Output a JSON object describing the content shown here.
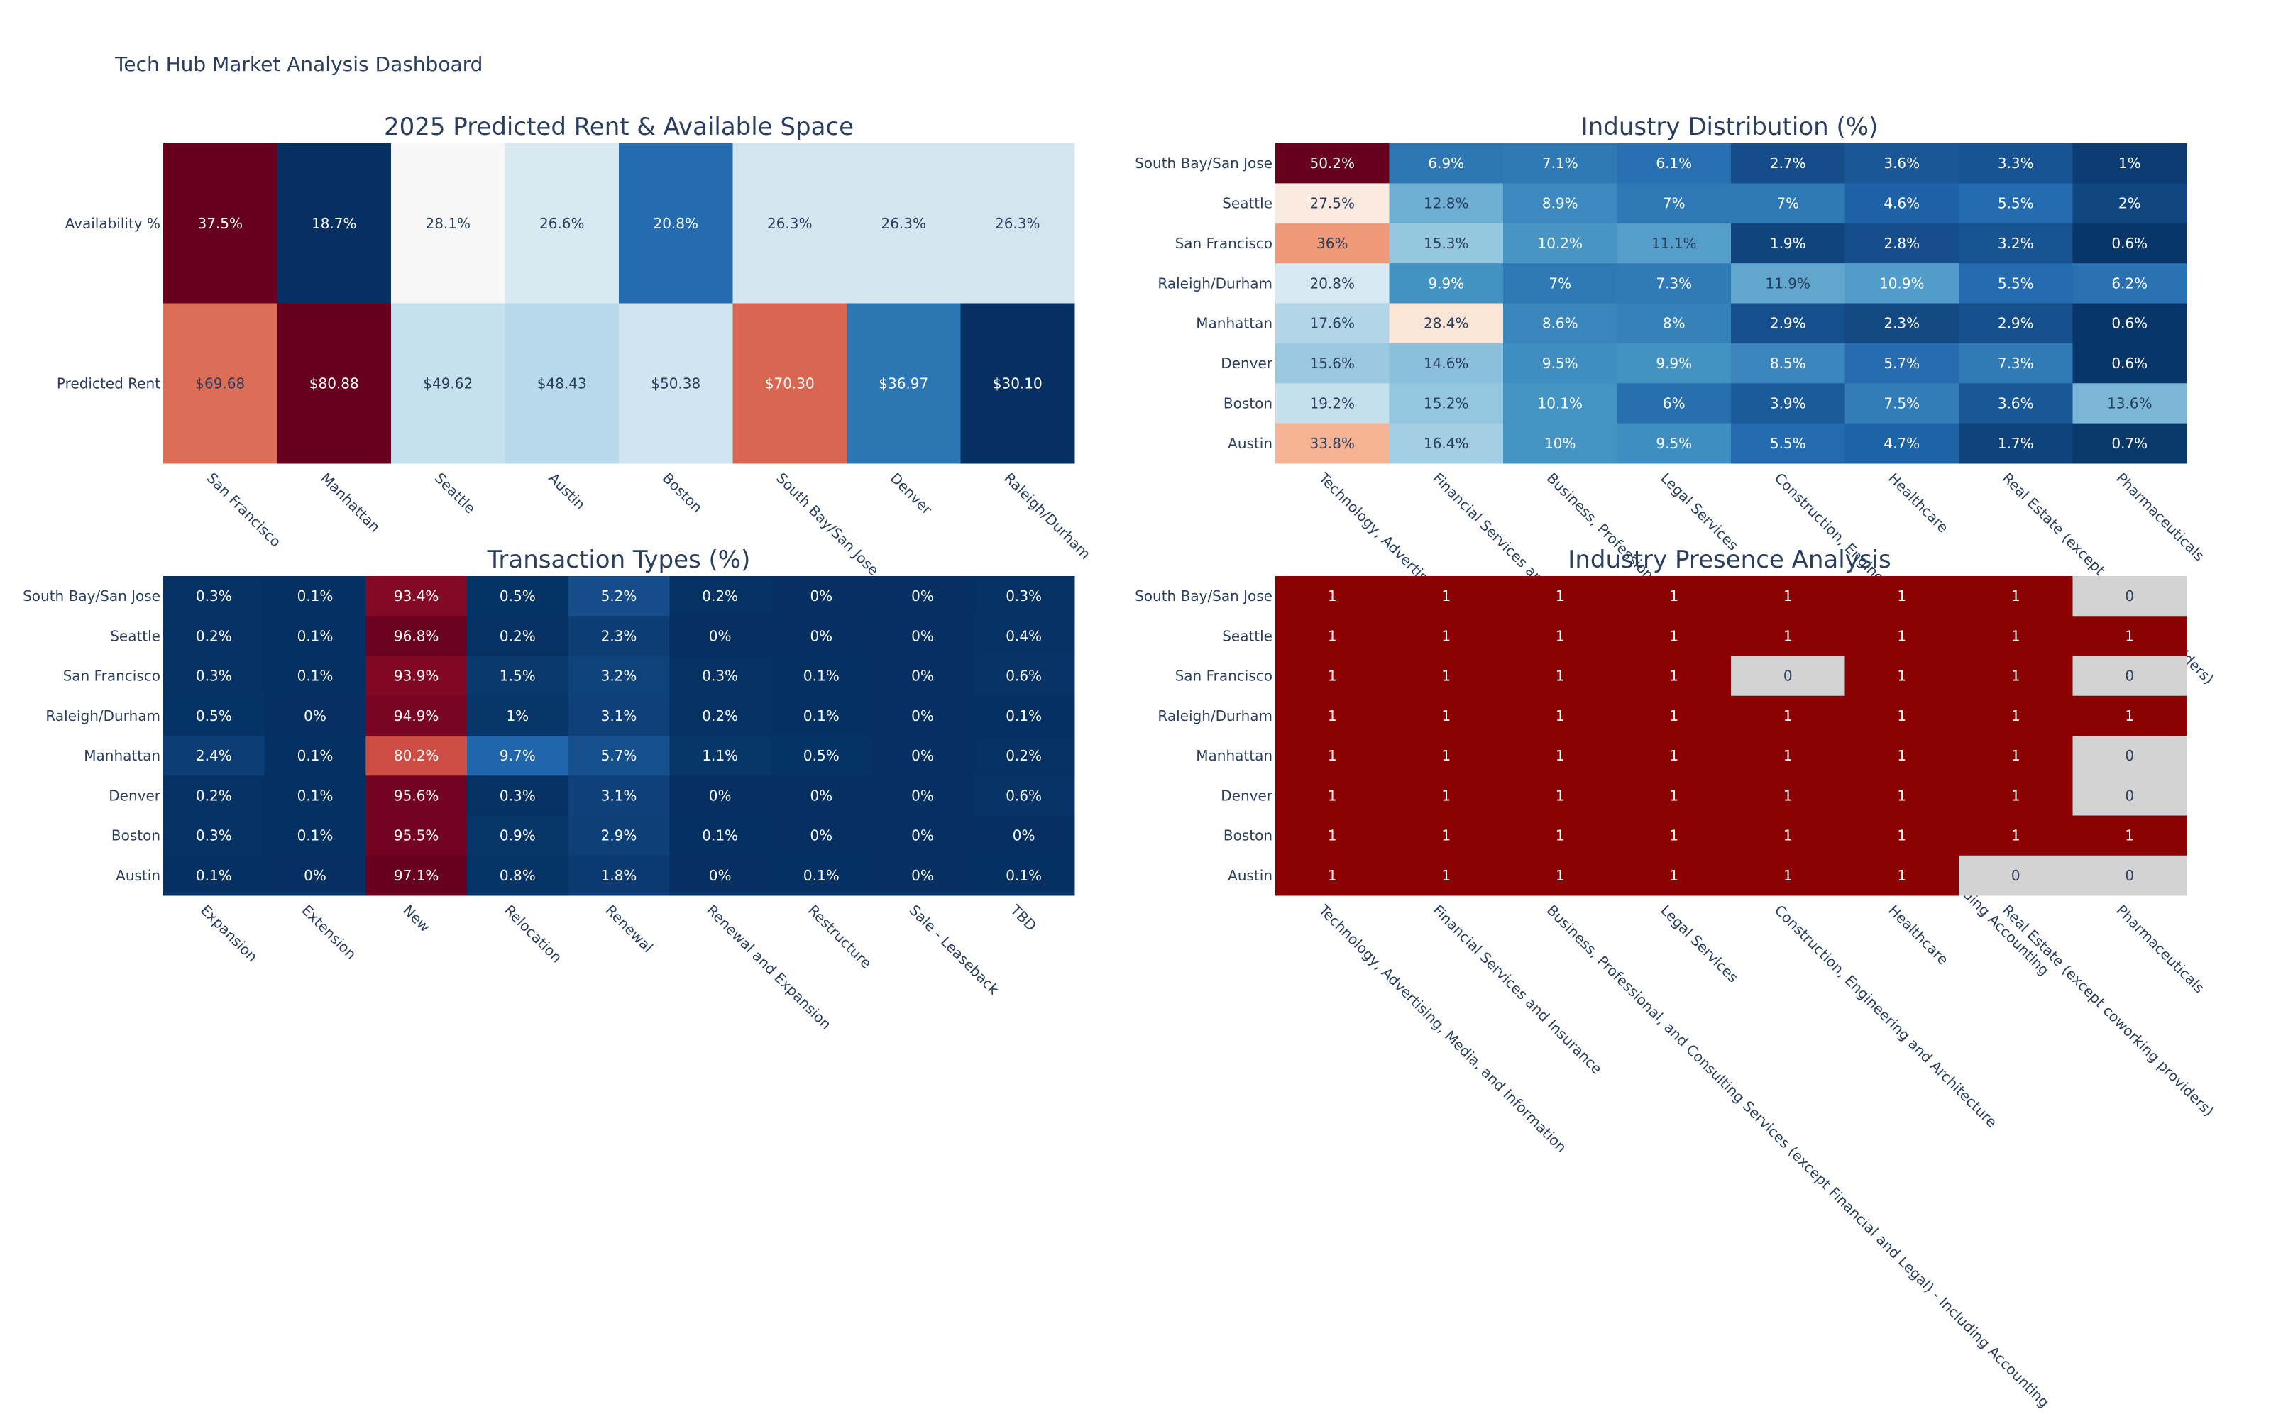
{
  "title": "Tech Hub Market Analysis Dashboard",
  "chart_data": [
    {
      "type": "heatmap",
      "title": "2025 Predicted Rent & Available Space",
      "colorscale": "RdBu-reversed (per row)",
      "x": [
        "San Francisco",
        "Manhattan",
        "Seattle",
        "Austin",
        "Boston",
        "South Bay/San Jose",
        "Denver",
        "Raleigh/Durham"
      ],
      "y": [
        "Availability %",
        "Predicted Rent"
      ],
      "z": [
        [
          37.5,
          18.7,
          28.1,
          26.6,
          20.8,
          26.3,
          26.3,
          26.3
        ],
        [
          69.68,
          80.88,
          49.62,
          48.43,
          50.38,
          70.3,
          36.97,
          30.1
        ]
      ],
      "text": [
        [
          "37.5%",
          "18.7%",
          "28.1%",
          "26.6%",
          "20.8%",
          "26.3%",
          "26.3%",
          "26.3%"
        ],
        [
          "$69.68",
          "$80.88",
          "$49.62",
          "$48.43",
          "$50.38",
          "$70.30",
          "$36.97",
          "$30.10"
        ]
      ]
    },
    {
      "type": "heatmap",
      "title": "Industry Distribution (%)",
      "colorscale": "RdBu-reversed",
      "zmin": 0,
      "zmax": 50.2,
      "x": [
        "Technology, Advertising, Media, and Information",
        "Financial Services and Insurance",
        "Business, Professional, and Consulting Services (except Financial and Legal) - Including Accounting",
        "Legal Services",
        "Construction, Engineering and Architecture",
        "Healthcare",
        "Real Estate (except coworking providers)",
        "Pharmaceuticals"
      ],
      "y": [
        "South Bay/San Jose",
        "Seattle",
        "San Francisco",
        "Raleigh/Durham",
        "Manhattan",
        "Denver",
        "Boston",
        "Austin"
      ],
      "z": [
        [
          50.2,
          6.9,
          7.1,
          6.1,
          2.7,
          3.6,
          3.3,
          1
        ],
        [
          27.5,
          12.8,
          8.9,
          7,
          7,
          4.6,
          5.5,
          2
        ],
        [
          36,
          15.3,
          10.2,
          11.1,
          1.9,
          2.8,
          3.2,
          0.6
        ],
        [
          20.8,
          9.9,
          7,
          7.3,
          11.9,
          10.9,
          5.5,
          6.2
        ],
        [
          17.6,
          28.4,
          8.6,
          8,
          2.9,
          2.3,
          2.9,
          0.6
        ],
        [
          15.6,
          14.6,
          9.5,
          9.9,
          8.5,
          5.7,
          7.3,
          0.6
        ],
        [
          19.2,
          15.2,
          10.1,
          6,
          3.9,
          7.5,
          3.6,
          13.6
        ],
        [
          33.8,
          16.4,
          10,
          9.5,
          5.5,
          4.7,
          1.7,
          0.7
        ]
      ]
    },
    {
      "type": "heatmap",
      "title": "Transaction Types (%)",
      "colorscale": "RdBu-reversed",
      "zmin": 0,
      "zmax": 97.1,
      "x": [
        "Expansion",
        "Extension",
        "New",
        "Relocation",
        "Renewal",
        "Renewal and Expansion",
        "Restructure",
        "Sale - Leaseback",
        "TBD"
      ],
      "y": [
        "South Bay/San Jose",
        "Seattle",
        "San Francisco",
        "Raleigh/Durham",
        "Manhattan",
        "Denver",
        "Boston",
        "Austin"
      ],
      "z": [
        [
          0.3,
          0.1,
          93.4,
          0.5,
          5.2,
          0.2,
          0,
          0,
          0.3
        ],
        [
          0.2,
          0.1,
          96.8,
          0.2,
          2.3,
          0,
          0,
          0,
          0.4
        ],
        [
          0.3,
          0.1,
          93.9,
          1.5,
          3.2,
          0.3,
          0.1,
          0,
          0.6
        ],
        [
          0.5,
          0,
          94.9,
          1,
          3.1,
          0.2,
          0.1,
          0,
          0.1
        ],
        [
          2.4,
          0.1,
          80.2,
          9.7,
          5.7,
          1.1,
          0.5,
          0,
          0.2
        ],
        [
          0.2,
          0.1,
          95.6,
          0.3,
          3.1,
          0,
          0,
          0,
          0.6
        ],
        [
          0.3,
          0.1,
          95.5,
          0.9,
          2.9,
          0.1,
          0,
          0,
          0
        ],
        [
          0.1,
          0,
          97.1,
          0.8,
          1.8,
          0,
          0.1,
          0,
          0.1
        ]
      ]
    },
    {
      "type": "heatmap",
      "title": "Industry Presence Analysis",
      "colorscale": [
        "#d3d3d3",
        "#8b0000"
      ],
      "x": [
        "Technology, Advertising, Media, and Information",
        "Financial Services and Insurance",
        "Business, Professional, and Consulting Services (except Financial and Legal) - Including Accounting",
        "Legal Services",
        "Construction, Engineering and Architecture",
        "Healthcare",
        "Real Estate (except coworking providers)",
        "Pharmaceuticals"
      ],
      "y": [
        "South Bay/San Jose",
        "Seattle",
        "San Francisco",
        "Raleigh/Durham",
        "Manhattan",
        "Denver",
        "Boston",
        "Austin"
      ],
      "z": [
        [
          1,
          1,
          1,
          1,
          1,
          1,
          1,
          0
        ],
        [
          1,
          1,
          1,
          1,
          1,
          1,
          1,
          1
        ],
        [
          1,
          1,
          1,
          1,
          0,
          1,
          1,
          0
        ],
        [
          1,
          1,
          1,
          1,
          1,
          1,
          1,
          1
        ],
        [
          1,
          1,
          1,
          1,
          1,
          1,
          1,
          0
        ],
        [
          1,
          1,
          1,
          1,
          1,
          1,
          1,
          0
        ],
        [
          1,
          1,
          1,
          1,
          1,
          1,
          1,
          1
        ],
        [
          1,
          1,
          1,
          1,
          1,
          1,
          0,
          0
        ]
      ]
    }
  ]
}
